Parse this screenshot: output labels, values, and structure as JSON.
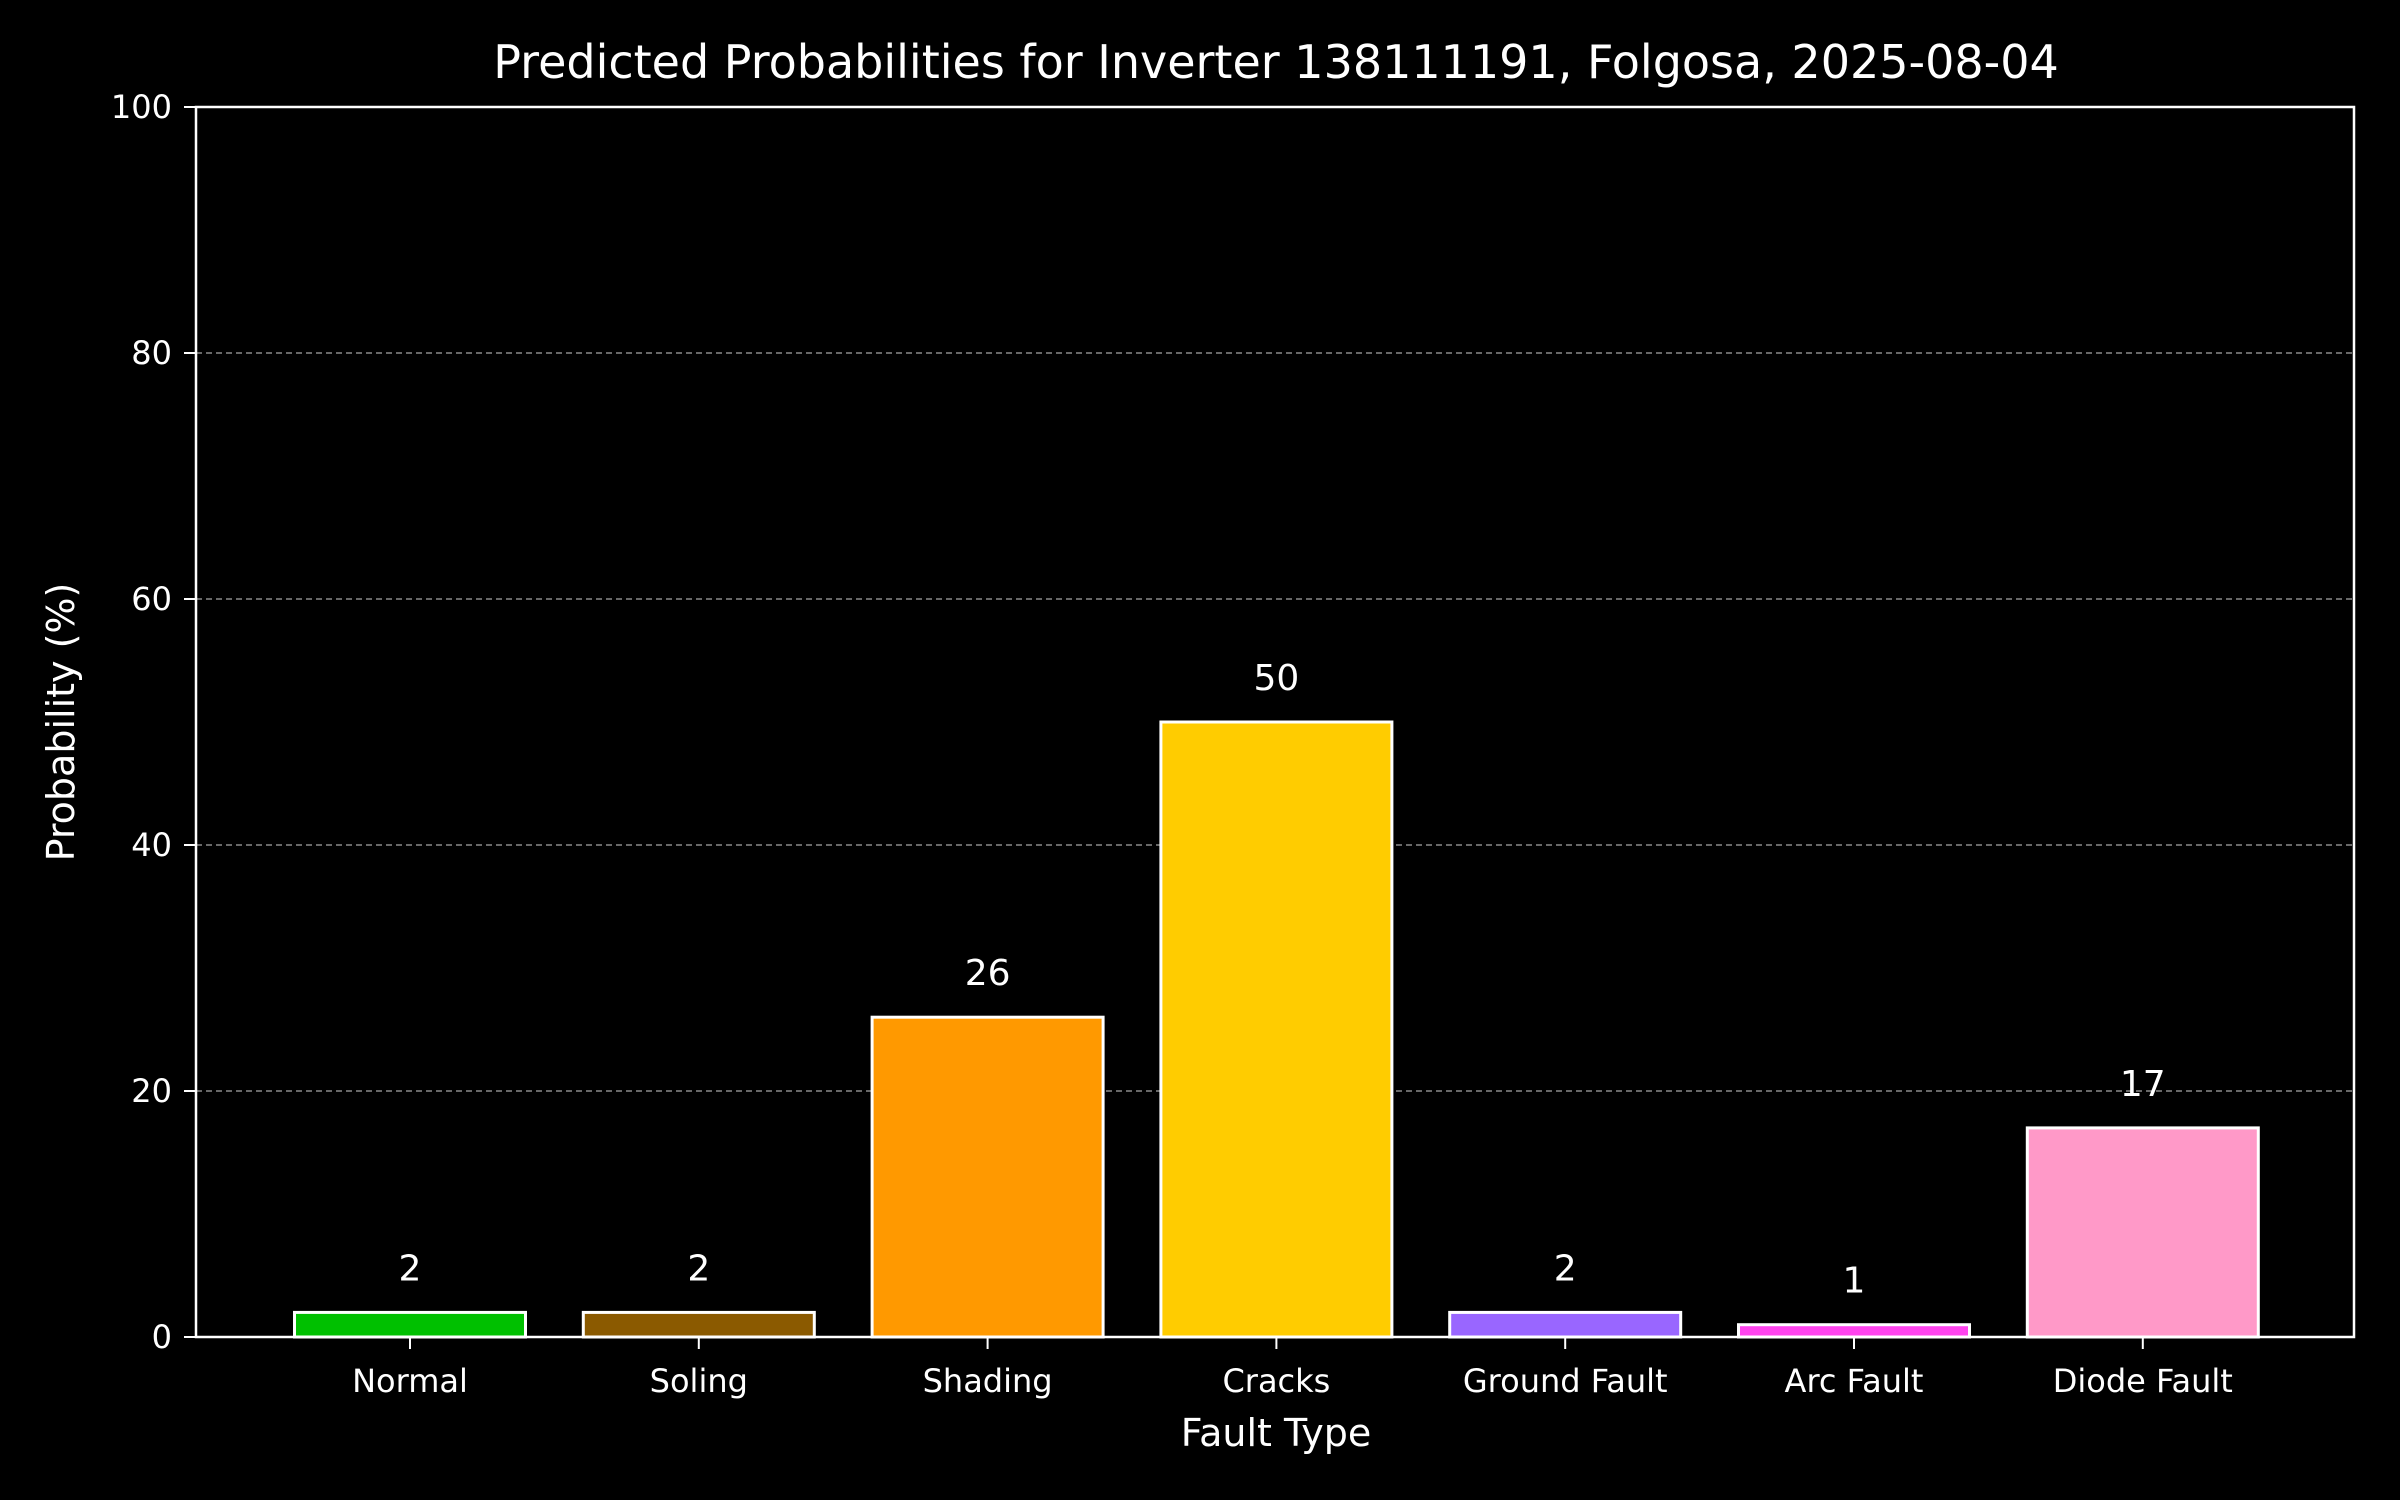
{
  "chart_data": {
    "type": "bar",
    "title": "Predicted Probabilities for Inverter 138111191, Folgosa, 2025-08-04",
    "xlabel": "Fault Type",
    "ylabel": "Probability (%)",
    "ylim": [
      0,
      100
    ],
    "yticks": [
      0,
      20,
      40,
      60,
      80,
      100
    ],
    "grid": "horizontal dashed",
    "categories": [
      "Normal",
      "Soling",
      "Shading",
      "Cracks",
      "Ground Fault",
      "Arc Fault",
      "Diode Fault"
    ],
    "values": [
      2,
      2,
      26,
      50,
      2,
      1,
      17
    ],
    "data_labels": [
      "2",
      "2",
      "26",
      "50",
      "2",
      "1",
      "17"
    ],
    "colors": [
      "#00c000",
      "#8b5a00",
      "#ff9900",
      "#ffcc00",
      "#9966ff",
      "#ff44ee",
      "#ff99c8"
    ],
    "background": "#000000",
    "foreground": "#ffffff"
  }
}
